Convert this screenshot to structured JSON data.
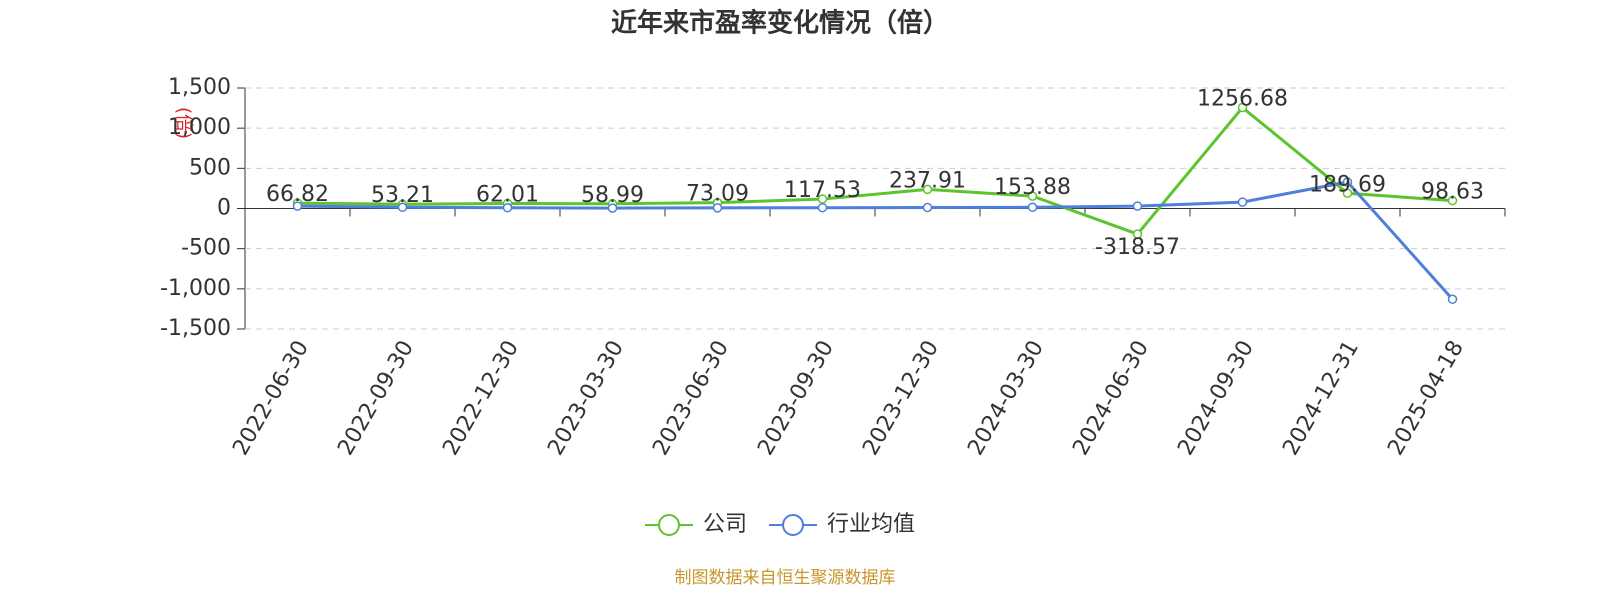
{
  "chart_data": {
    "type": "line",
    "title": "近年来市盈率变化情况（倍）",
    "y_label": "(倍)",
    "categories": [
      "2022-06-30",
      "2022-09-30",
      "2022-12-30",
      "2023-03-30",
      "2023-06-30",
      "2023-09-30",
      "2023-12-30",
      "2024-03-30",
      "2024-06-30",
      "2024-09-30",
      "2024-12-31",
      "2025-04-18"
    ],
    "series": [
      {
        "name": "公司",
        "color": "#5cc42c",
        "values": [
          66.82,
          53.21,
          62.01,
          58.99,
          73.09,
          117.53,
          237.91,
          153.88,
          -318.57,
          1256.68,
          189.69,
          98.63
        ]
      },
      {
        "name": "行业均值",
        "color": "#4e7fdb",
        "values": [
          30,
          15,
          10,
          5,
          8,
          10,
          12,
          15,
          30,
          80,
          330,
          -1130
        ]
      }
    ],
    "ylim": [
      -1500,
      1500
    ],
    "yticks": [
      {
        "value": -1500,
        "label": "-1,500"
      },
      {
        "value": -1000,
        "label": "-1,000"
      },
      -500,
      0,
      500,
      {
        "value": 1000,
        "label": "1,000"
      },
      {
        "value": 1500,
        "label": "1,500"
      }
    ],
    "grid": true,
    "legend": "bottom",
    "source": "制图数据来自恒生聚源数据库"
  }
}
